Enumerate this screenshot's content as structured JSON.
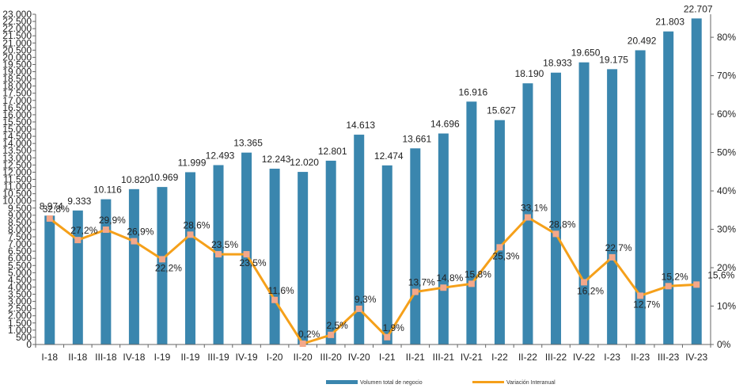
{
  "chart_data": {
    "type": "bar",
    "categories": [
      "I-18",
      "II-18",
      "III-18",
      "IV-18",
      "I-19",
      "II-19",
      "III-19",
      "IV-19",
      "I-20",
      "II-20",
      "III-20",
      "IV-20",
      "I-21",
      "II-21",
      "III-21",
      "IV-21",
      "I-22",
      "II-22",
      "III-22",
      "IV-22",
      "I-23",
      "II-23",
      "III-23",
      "IV-23"
    ],
    "series": [
      {
        "name": "Volumen total de negocio",
        "type": "bar",
        "axis": "left",
        "color": "#3a86ae",
        "values": [
          8974,
          9333,
          10116,
          10820,
          10969,
          11999,
          12493,
          13365,
          12243,
          12020,
          12801,
          14613,
          12474,
          13661,
          14696,
          16916,
          15627,
          18190,
          18933,
          19650,
          19175,
          20492,
          21803,
          22707
        ],
        "labels": [
          "8.974",
          "9.333",
          "10.116",
          "10.820",
          "10.969",
          "11.999",
          "12.493",
          "13.365",
          "12.243",
          "12.020",
          "12.801",
          "14.613",
          "12.474",
          "13.661",
          "14.696",
          "16.916",
          "15.627",
          "18.190",
          "18.933",
          "19.650",
          "19.175",
          "20.492",
          "21.803",
          "22.707"
        ]
      },
      {
        "name": "Variación Interanual",
        "type": "line",
        "axis": "right",
        "color": "#f5a01a",
        "marker_color": "#f4a88a",
        "values": [
          32.8,
          27.2,
          29.9,
          26.9,
          22.2,
          28.6,
          23.5,
          23.5,
          11.6,
          0.2,
          2.5,
          9.3,
          1.9,
          13.7,
          14.8,
          15.8,
          25.3,
          33.1,
          28.8,
          16.2,
          22.7,
          12.7,
          15.2,
          15.6
        ],
        "labels": [
          "32,8%",
          "27,2%",
          "29,9%",
          "26,9%",
          "22,2%",
          "28,6%",
          "23,5%",
          "23,5%",
          "11,6%",
          "0,2%",
          "2,5%",
          "9,3%",
          "1,9%",
          "13,7%",
          "14,8%",
          "15,8%",
          "25,3%",
          "33,1%",
          "28,8%",
          "16,2%",
          "22,7%",
          "12,7%",
          "15,2%",
          "15,6%"
        ]
      }
    ],
    "y_left": {
      "min": 0,
      "max": 23000,
      "step": 500
    },
    "y_right": {
      "min": 0,
      "max": 86,
      "ticks": [
        0,
        10,
        20,
        30,
        40,
        50,
        60,
        70,
        80
      ]
    },
    "grid": false,
    "legend_position": "bottom"
  }
}
